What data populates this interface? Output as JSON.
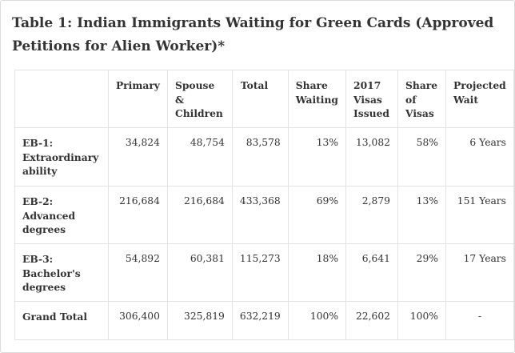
{
  "title": "Table 1: Indian Immigrants Waiting for Green Cards (Approved Petitions for Alien Worker)*",
  "table": {
    "headers": [
      "",
      "Primary",
      "Spouse & Children",
      "Total",
      "Share Waiting",
      "2017 Visas Issued",
      "Share of Visas",
      "Projected Wait"
    ],
    "rows": [
      [
        "EB-1: Extraordinary ability",
        "34,824",
        "48,754",
        "83,578",
        "13%",
        "13,082",
        "58%",
        "6 Years"
      ],
      [
        "EB-2: Advanced degrees",
        "216,684",
        "216,684",
        "433,368",
        "69%",
        "2,879",
        "13%",
        "151 Years"
      ],
      [
        "EB-3: Bachelor's degrees",
        "54,892",
        "60,381",
        "115,273",
        "18%",
        "6,641",
        "29%",
        "17 Years"
      ],
      [
        "Grand Total",
        "306,400",
        "325,819",
        "632,219",
        "100%",
        "22,602",
        "100%",
        "-"
      ]
    ]
  }
}
